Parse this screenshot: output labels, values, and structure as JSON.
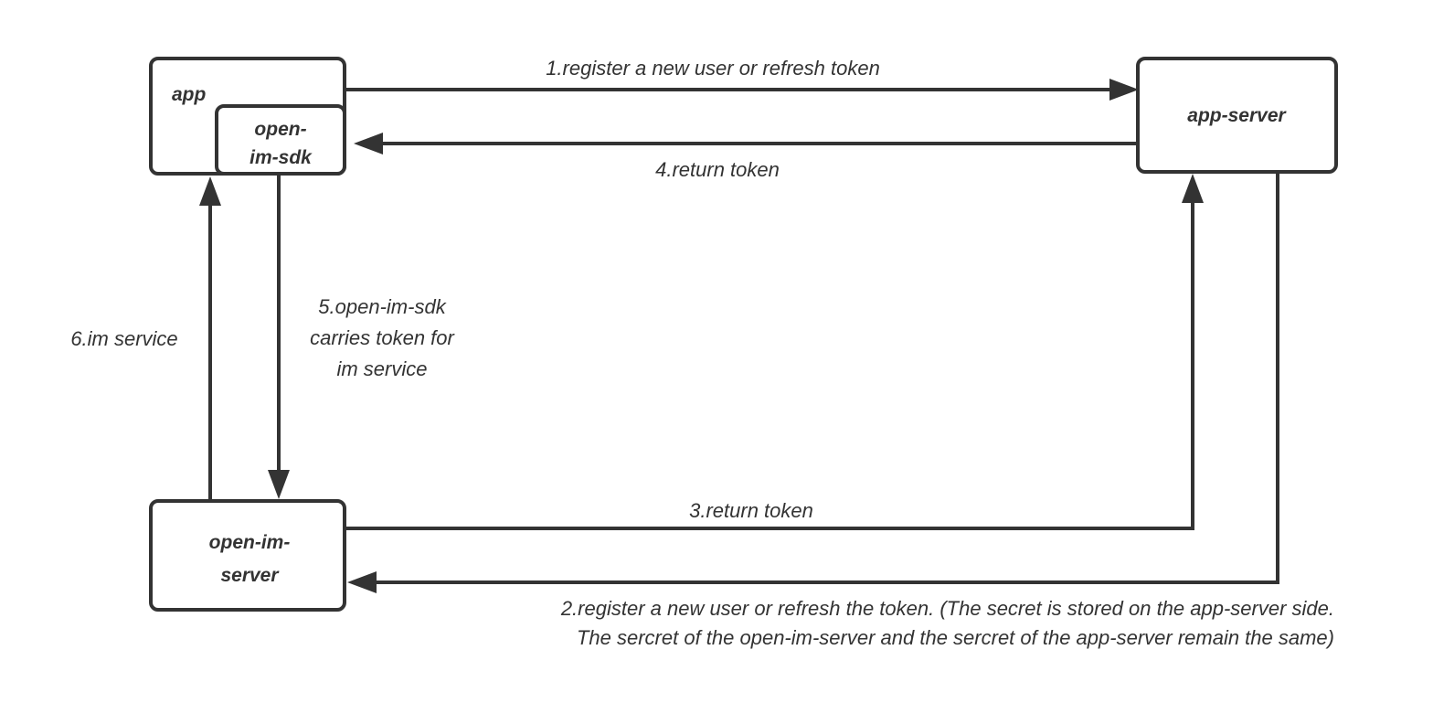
{
  "nodes": {
    "app": "app",
    "sdk_line1": "open-",
    "sdk_line2": "im-sdk",
    "app_server": "app-server",
    "im_server_line1": "open-im-",
    "im_server_line2": "server"
  },
  "edges": {
    "e1": "1.register a new user or refresh token",
    "e2_line1": "2.register a new user or refresh the token. (The secret is stored on the app-server side.",
    "e2_line2": "The sercret of the open-im-server and the sercret of the app-server remain the same)",
    "e3": "3.return token",
    "e4": "4.return token",
    "e5_line1": "5.open-im-sdk",
    "e5_line2": "carries token for",
    "e5_line3": "im service",
    "e6": "6.im service"
  }
}
